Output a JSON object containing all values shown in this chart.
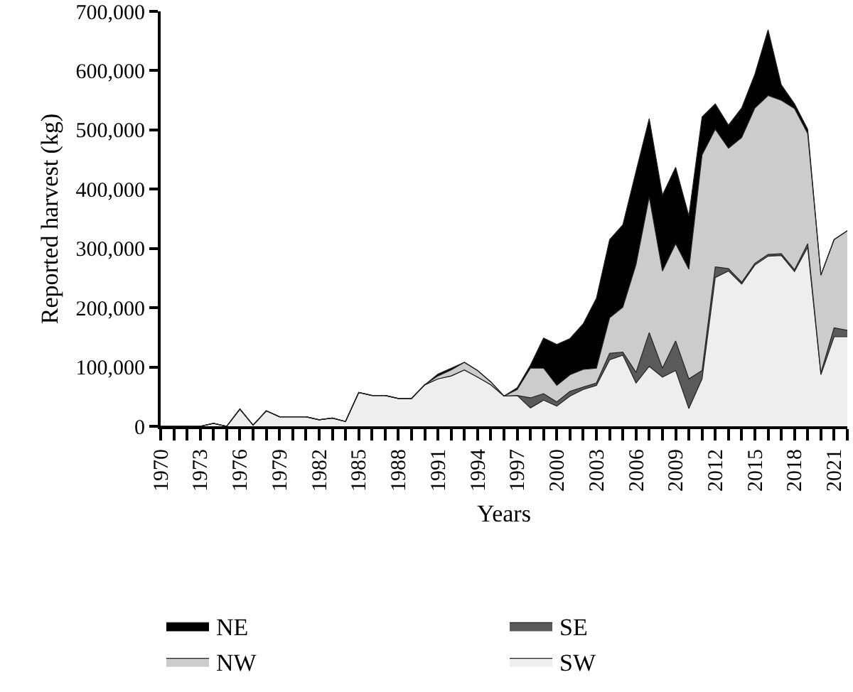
{
  "chart_data": {
    "type": "area",
    "stacked": true,
    "xlabel": "Years",
    "ylabel": "Reported harvest (kg)",
    "x": [
      1970,
      1971,
      1972,
      1973,
      1974,
      1975,
      1976,
      1977,
      1978,
      1979,
      1980,
      1981,
      1982,
      1983,
      1984,
      1985,
      1986,
      1987,
      1988,
      1989,
      1990,
      1991,
      1992,
      1993,
      1994,
      1995,
      1996,
      1997,
      1998,
      1999,
      2000,
      2001,
      2002,
      2003,
      2004,
      2005,
      2006,
      2007,
      2008,
      2009,
      2010,
      2011,
      2012,
      2013,
      2014,
      2015,
      2016,
      2017,
      2018,
      2019,
      2020,
      2021,
      2022
    ],
    "series": [
      {
        "name": "SW",
        "color": "#eeeeee",
        "values": [
          0,
          0,
          0,
          0,
          5000,
          0,
          29000,
          2000,
          26000,
          16000,
          16000,
          16000,
          11000,
          14000,
          8000,
          57000,
          52000,
          52000,
          47000,
          47000,
          70000,
          80000,
          85000,
          95000,
          83000,
          70000,
          51000,
          52000,
          31000,
          44000,
          34000,
          51000,
          62000,
          69000,
          112000,
          120000,
          73000,
          101000,
          83000,
          94000,
          30000,
          80000,
          251000,
          262000,
          240000,
          272000,
          287000,
          288000,
          261000,
          302000,
          87000,
          151000,
          151000
        ]
      },
      {
        "name": "SE",
        "color": "#5a5a5a",
        "values": [
          0,
          0,
          0,
          0,
          0,
          0,
          0,
          0,
          0,
          0,
          0,
          0,
          0,
          0,
          0,
          0,
          0,
          0,
          0,
          0,
          0,
          0,
          0,
          0,
          0,
          0,
          0,
          0,
          17000,
          11000,
          7000,
          8000,
          4000,
          4000,
          11000,
          5000,
          18000,
          57000,
          15000,
          50000,
          50000,
          14000,
          18000,
          4000,
          3000,
          3000,
          3000,
          3000,
          3000,
          6000,
          3000,
          15000,
          11000
        ]
      },
      {
        "name": "NW",
        "color": "#cccccc",
        "values": [
          0,
          0,
          0,
          0,
          0,
          0,
          0,
          0,
          0,
          0,
          0,
          0,
          0,
          0,
          0,
          0,
          0,
          0,
          0,
          0,
          0,
          5000,
          10000,
          13000,
          11000,
          5000,
          0,
          10000,
          50000,
          43000,
          28000,
          28000,
          30000,
          25000,
          60000,
          76000,
          182000,
          229000,
          164000,
          164000,
          185000,
          364000,
          232000,
          203000,
          244000,
          262000,
          268000,
          259000,
          272000,
          186000,
          165000,
          149000,
          168000
        ]
      },
      {
        "name": "NE",
        "color": "#000000",
        "values": [
          0,
          0,
          0,
          0,
          0,
          0,
          0,
          0,
          0,
          0,
          0,
          0,
          0,
          0,
          0,
          0,
          0,
          0,
          0,
          0,
          0,
          3000,
          3000,
          0,
          0,
          0,
          0,
          3000,
          5000,
          51000,
          69000,
          61000,
          77000,
          118000,
          132000,
          139000,
          157000,
          132000,
          128000,
          129000,
          90000,
          64000,
          43000,
          39000,
          50000,
          57000,
          111000,
          26000,
          8000,
          7000,
          0,
          0,
          0
        ]
      }
    ],
    "xlim": [
      1970,
      2022
    ],
    "xticks": [
      1970,
      {
        "value": 1971,
        "label": null
      },
      {
        "value": 1972,
        "label": null
      },
      1973,
      {
        "value": 1974,
        "label": null
      },
      {
        "value": 1975,
        "label": null
      },
      1976,
      {
        "value": 1977,
        "label": null
      },
      {
        "value": 1978,
        "label": null
      },
      1979,
      {
        "value": 1980,
        "label": null
      },
      {
        "value": 1981,
        "label": null
      },
      1982,
      {
        "value": 1983,
        "label": null
      },
      {
        "value": 1984,
        "label": null
      },
      1985,
      {
        "value": 1986,
        "label": null
      },
      {
        "value": 1987,
        "label": null
      },
      1988,
      {
        "value": 1989,
        "label": null
      },
      {
        "value": 1990,
        "label": null
      },
      1991,
      {
        "value": 1992,
        "label": null
      },
      {
        "value": 1993,
        "label": null
      },
      1994,
      {
        "value": 1995,
        "label": null
      },
      {
        "value": 1996,
        "label": null
      },
      1997,
      {
        "value": 1998,
        "label": null
      },
      {
        "value": 1999,
        "label": null
      },
      2000,
      {
        "value": 2001,
        "label": null
      },
      {
        "value": 2002,
        "label": null
      },
      2003,
      {
        "value": 2004,
        "label": null
      },
      {
        "value": 2005,
        "label": null
      },
      2006,
      {
        "value": 2007,
        "label": null
      },
      {
        "value": 2008,
        "label": null
      },
      2009,
      {
        "value": 2010,
        "label": null
      },
      {
        "value": 2011,
        "label": null
      },
      2012,
      {
        "value": 2013,
        "label": null
      },
      {
        "value": 2014,
        "label": null
      },
      2015,
      {
        "value": 2016,
        "label": null
      },
      {
        "value": 2017,
        "label": null
      },
      2018,
      {
        "value": 2019,
        "label": null
      },
      {
        "value": 2020,
        "label": null
      },
      2021,
      {
        "value": 2022,
        "label": null
      }
    ],
    "ylim": [
      0,
      700000
    ],
    "yticks": [
      0,
      {
        "value": 100000,
        "label": "100,000"
      },
      {
        "value": 200000,
        "label": "200,000"
      },
      {
        "value": 300000,
        "label": "300,000"
      },
      {
        "value": 400000,
        "label": "400,000"
      },
      {
        "value": 500000,
        "label": "500,000"
      },
      {
        "value": 600000,
        "label": "600,000"
      },
      {
        "value": 700000,
        "label": "700,000"
      }
    ],
    "grid": false,
    "legend": "bottom"
  }
}
